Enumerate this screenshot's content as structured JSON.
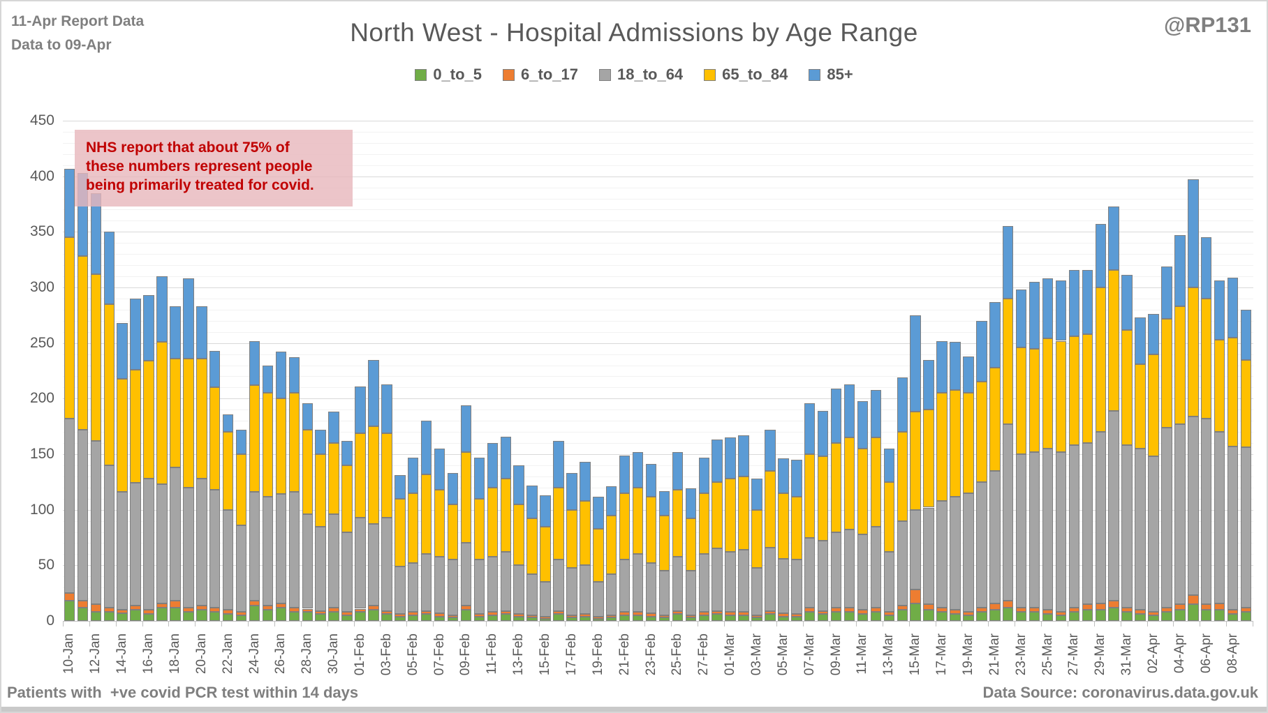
{
  "header": {
    "report_line1": "11-Apr Report Data",
    "report_line2": "Data to 09-Apr",
    "title": "North West - Hospital Admissions by Age Range",
    "handle": "@RP131"
  },
  "annotation": {
    "text": "NHS report that about 75% of these numbers represent people being primarily treated for covid.",
    "text_color": "#c00000",
    "bg_color": "#e7b7bb"
  },
  "footer": {
    "left": "Patients with  +ve covid PCR test within 14 days",
    "right": "Data Source: coronavirus.data.gov.uk"
  },
  "chart_data": {
    "type": "bar",
    "stacked": true,
    "title": "North West - Hospital Admissions by Age Range",
    "xlabel": "",
    "ylabel": "",
    "ylim": [
      0,
      450
    ],
    "ytick_step": 50,
    "minor_gridline_step": 10,
    "grid": true,
    "legend_position": "top",
    "x_label_every": 2,
    "categories": [
      "10-Jan",
      "11-Jan",
      "12-Jan",
      "13-Jan",
      "14-Jan",
      "15-Jan",
      "16-Jan",
      "17-Jan",
      "18-Jan",
      "19-Jan",
      "20-Jan",
      "21-Jan",
      "22-Jan",
      "23-Jan",
      "24-Jan",
      "25-Jan",
      "26-Jan",
      "27-Jan",
      "28-Jan",
      "29-Jan",
      "30-Jan",
      "31-Jan",
      "01-Feb",
      "02-Feb",
      "03-Feb",
      "04-Feb",
      "05-Feb",
      "06-Feb",
      "07-Feb",
      "08-Feb",
      "09-Feb",
      "10-Feb",
      "11-Feb",
      "12-Feb",
      "13-Feb",
      "14-Feb",
      "15-Feb",
      "16-Feb",
      "17-Feb",
      "18-Feb",
      "19-Feb",
      "20-Feb",
      "21-Feb",
      "22-Feb",
      "23-Feb",
      "24-Feb",
      "25-Feb",
      "26-Feb",
      "27-Feb",
      "28-Feb",
      "01-Mar",
      "02-Mar",
      "03-Mar",
      "04-Mar",
      "05-Mar",
      "06-Mar",
      "07-Mar",
      "08-Mar",
      "09-Mar",
      "10-Mar",
      "11-Mar",
      "12-Mar",
      "13-Mar",
      "14-Mar",
      "15-Mar",
      "16-Mar",
      "17-Mar",
      "18-Mar",
      "19-Mar",
      "20-Mar",
      "21-Mar",
      "22-Mar",
      "23-Mar",
      "24-Mar",
      "25-Mar",
      "26-Mar",
      "27-Mar",
      "28-Mar",
      "29-Mar",
      "30-Mar",
      "31-Mar",
      "01-Apr",
      "02-Apr",
      "03-Apr",
      "04-Apr",
      "05-Apr",
      "06-Apr",
      "07-Apr",
      "08-Apr",
      "09-Apr"
    ],
    "series": [
      {
        "name": "0_to_5",
        "color": "#70AD47",
        "values": [
          18,
          12,
          8,
          8,
          7,
          10,
          6,
          12,
          12,
          8,
          10,
          8,
          6,
          5,
          14,
          10,
          12,
          8,
          8,
          6,
          8,
          5,
          8,
          10,
          6,
          4,
          5,
          6,
          4,
          3,
          10,
          4,
          5,
          6,
          4,
          3,
          2,
          6,
          3,
          4,
          2,
          3,
          5,
          5,
          4,
          3,
          6,
          3,
          5,
          6,
          5,
          5,
          3,
          6,
          4,
          4,
          8,
          6,
          8,
          8,
          6,
          8,
          5,
          10,
          16,
          10,
          8,
          6,
          5,
          8,
          10,
          12,
          8,
          8,
          6,
          5,
          8,
          10,
          10,
          12,
          8,
          6,
          5,
          8,
          10,
          15,
          10,
          10,
          6,
          8
        ]
      },
      {
        "name": "6_to_17",
        "color": "#ED7D31",
        "values": [
          7,
          6,
          7,
          4,
          3,
          4,
          4,
          4,
          6,
          4,
          4,
          4,
          4,
          3,
          4,
          4,
          4,
          4,
          3,
          3,
          4,
          3,
          3,
          4,
          3,
          2,
          3,
          3,
          3,
          2,
          4,
          2,
          3,
          3,
          2,
          2,
          2,
          3,
          2,
          2,
          2,
          2,
          3,
          3,
          3,
          2,
          3,
          2,
          3,
          3,
          3,
          3,
          2,
          3,
          3,
          2,
          4,
          3,
          4,
          4,
          4,
          4,
          3,
          4,
          12,
          5,
          4,
          4,
          3,
          4,
          6,
          6,
          4,
          4,
          4,
          3,
          4,
          5,
          6,
          6,
          4,
          4,
          3,
          4,
          5,
          8,
          5,
          6,
          4,
          4
        ]
      },
      {
        "name": "18_to_64",
        "color": "#A5A5A5",
        "values": [
          157,
          154,
          147,
          128,
          106,
          110,
          118,
          107,
          120,
          108,
          114,
          106,
          90,
          78,
          98,
          98,
          98,
          104,
          85,
          76,
          84,
          72,
          82,
          73,
          84,
          43,
          44,
          51,
          51,
          50,
          56,
          49,
          50,
          53,
          44,
          37,
          31,
          46,
          43,
          44,
          31,
          37,
          47,
          52,
          45,
          40,
          49,
          40,
          52,
          56,
          54,
          56,
          43,
          57,
          49,
          49,
          63,
          63,
          68,
          70,
          68,
          73,
          54,
          76,
          72,
          87,
          96,
          102,
          107,
          113,
          119,
          159,
          138,
          140,
          145,
          144,
          146,
          145,
          154,
          171,
          146,
          145,
          140,
          162,
          162,
          161,
          167,
          154,
          147,
          144
        ]
      },
      {
        "name": "65_to_84",
        "color": "#FFC000",
        "values": [
          163,
          156,
          150,
          145,
          102,
          102,
          106,
          128,
          98,
          116,
          108,
          92,
          70,
          64,
          96,
          93,
          86,
          89,
          76,
          65,
          64,
          60,
          76,
          88,
          76,
          61,
          63,
          72,
          60,
          50,
          82,
          55,
          62,
          66,
          55,
          50,
          50,
          65,
          52,
          58,
          48,
          53,
          60,
          60,
          60,
          50,
          60,
          47,
          55,
          60,
          66,
          66,
          52,
          69,
          59,
          57,
          75,
          76,
          80,
          83,
          77,
          80,
          63,
          80,
          88,
          88,
          97,
          96,
          90,
          90,
          93,
          113,
          96,
          93,
          99,
          100,
          98,
          98,
          130,
          127,
          104,
          76,
          92,
          98,
          106,
          116,
          108,
          83,
          98,
          79
        ]
      },
      {
        "name": "85+",
        "color": "#5B9BD5",
        "values": [
          62,
          75,
          73,
          65,
          50,
          64,
          59,
          59,
          47,
          72,
          47,
          33,
          16,
          22,
          40,
          25,
          42,
          32,
          24,
          22,
          28,
          22,
          42,
          60,
          44,
          21,
          32,
          48,
          37,
          28,
          42,
          37,
          40,
          38,
          35,
          30,
          28,
          42,
          33,
          35,
          29,
          26,
          34,
          32,
          29,
          22,
          34,
          27,
          32,
          38,
          37,
          37,
          28,
          37,
          31,
          33,
          46,
          41,
          49,
          48,
          43,
          43,
          30,
          49,
          87,
          45,
          47,
          43,
          33,
          55,
          59,
          65,
          52,
          60,
          54,
          54,
          60,
          58,
          57,
          57,
          49,
          42,
          36,
          47,
          64,
          97,
          55,
          53,
          54,
          45
        ]
      }
    ]
  }
}
